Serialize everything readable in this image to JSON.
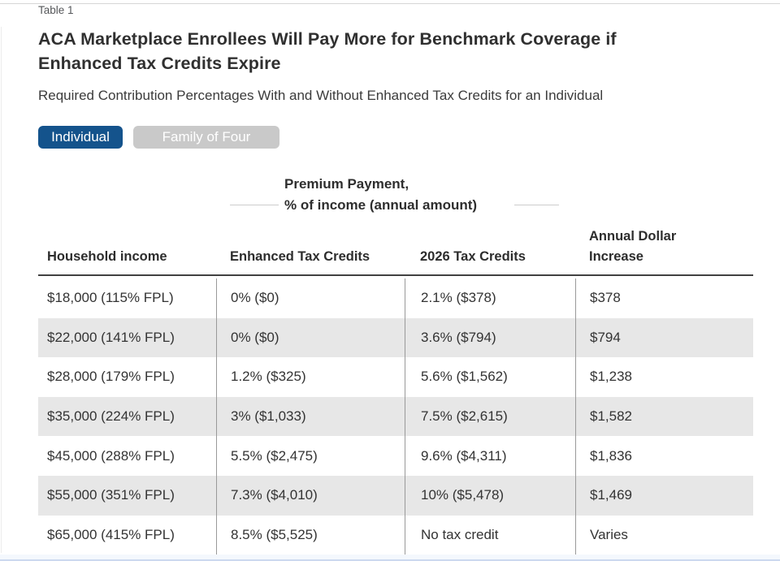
{
  "header": {
    "table_label": "Table 1",
    "title_line1": "ACA Marketplace Enrollees Will Pay More for Benchmark Coverage if",
    "title_line2": "Enhanced Tax Credits Expire",
    "subtitle": "Required Contribution Percentages With and Without Enhanced Tax Credits for an Individual"
  },
  "tabs": {
    "individual": "Individual",
    "family": "Family of Four"
  },
  "colors": {
    "active_tab_blue": "#14538c",
    "inactive_tab_gray": "#c9c9c9",
    "row_alt_gray": "#e7e7e7",
    "header_rule_dark": "#414141",
    "column_divider_gray": "#9a9a9a",
    "bottom_edge_blue": "#ccd9ef"
  },
  "chart_data": {
    "type": "table",
    "title": "ACA Marketplace Enrollees Will Pay More for Benchmark Coverage if Enhanced Tax Credits Expire",
    "subtitle": "Required Contribution Percentages With and Without Enhanced Tax Credits for an Individual",
    "selected_view": "Individual",
    "group_header_line1": "Premium Payment,",
    "group_header_line2": "% of income (annual amount)",
    "group_header_spans": [
      "Enhanced Tax Credits",
      "2026 Tax Credits"
    ],
    "columns": [
      "Household income",
      "Enhanced Tax Credits",
      "2026 Tax Credits",
      "Annual Dollar Increase"
    ],
    "rows": [
      [
        "$18,000 (115% FPL)",
        "0% ($0)",
        "2.1% ($378)",
        "$378"
      ],
      [
        "$22,000 (141% FPL)",
        "0% ($0)",
        "3.6% ($794)",
        "$794"
      ],
      [
        "$28,000 (179% FPL)",
        "1.2% ($325)",
        "5.6% ($1,562)",
        "$1,238"
      ],
      [
        "$35,000 (224% FPL)",
        "3% ($1,033)",
        "7.5% ($2,615)",
        "$1,582"
      ],
      [
        "$45,000 (288% FPL)",
        "5.5% ($2,475)",
        "9.6% ($4,311)",
        "$1,836"
      ],
      [
        "$55,000 (351% FPL)",
        "7.3% ($4,010)",
        "10% ($5,478)",
        "$1,469"
      ],
      [
        "$65,000 (415% FPL)",
        "8.5% ($5,525)",
        "No tax credit",
        "Varies"
      ]
    ]
  }
}
